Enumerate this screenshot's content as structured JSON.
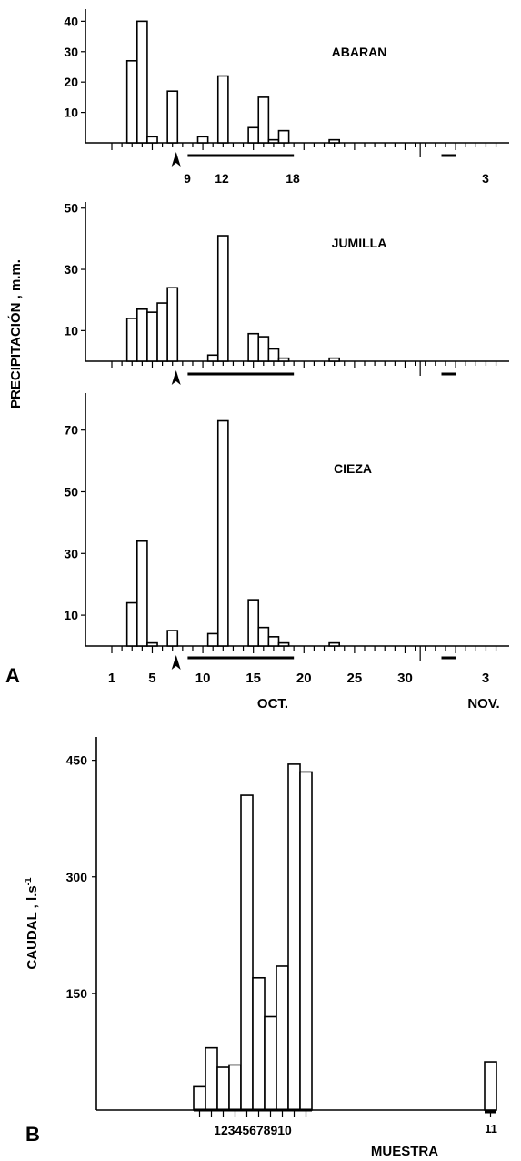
{
  "chart_data": [
    {
      "type": "bar",
      "panel": "A",
      "title": "ABARAN",
      "ylabel": "PRECIPITACIÓN , m.m.",
      "yticks": [
        10,
        20,
        30,
        40
      ],
      "ylim": [
        0,
        44
      ],
      "x": [
        3,
        4,
        5,
        7,
        10,
        12,
        15,
        16,
        17,
        18,
        23
      ],
      "values": [
        27,
        40,
        2,
        17,
        2,
        22,
        5,
        15,
        1,
        4,
        1
      ],
      "markers": [
        "9",
        "12",
        "18",
        "3"
      ],
      "arrow_day": 7
    },
    {
      "type": "bar",
      "panel": "A",
      "title": "JUMILLA",
      "yticks": [
        10,
        30,
        50
      ],
      "ylim": [
        0,
        52
      ],
      "x": [
        3,
        4,
        5,
        6,
        7,
        11,
        12,
        15,
        16,
        17,
        18,
        23
      ],
      "values": [
        14,
        17,
        16,
        19,
        24,
        2,
        41,
        9,
        8,
        4,
        1,
        1
      ],
      "arrow_day": 7
    },
    {
      "type": "bar",
      "panel": "A",
      "title": "CIEZA",
      "yticks": [
        10,
        30,
        50,
        70
      ],
      "ylim": [
        0,
        82
      ],
      "x": [
        3,
        4,
        5,
        7,
        11,
        12,
        15,
        16,
        17,
        18,
        23
      ],
      "values": [
        14,
        34,
        1,
        5,
        4,
        73,
        15,
        6,
        3,
        1,
        1
      ],
      "xticklabels": [
        "1",
        "5",
        "10",
        "15",
        "20",
        "25",
        "30",
        "3"
      ],
      "month_labels": [
        "OCT.",
        "NOV."
      ],
      "arrow_day": 7
    },
    {
      "type": "bar",
      "panel": "B",
      "ylabel": "CAUDAL ,   l.s",
      "ylabel_sup": "-1",
      "xlabel": "MUESTRA",
      "yticks": [
        150,
        300,
        450
      ],
      "ylim": [
        0,
        480
      ],
      "categories": [
        "1",
        "2",
        "3",
        "4",
        "5",
        "6",
        "7",
        "8",
        "9",
        "10",
        "11"
      ],
      "values": [
        30,
        80,
        55,
        58,
        405,
        170,
        120,
        185,
        445,
        435,
        62
      ],
      "group_label": "12345678910"
    }
  ],
  "panel_labels": [
    "A",
    "B"
  ]
}
